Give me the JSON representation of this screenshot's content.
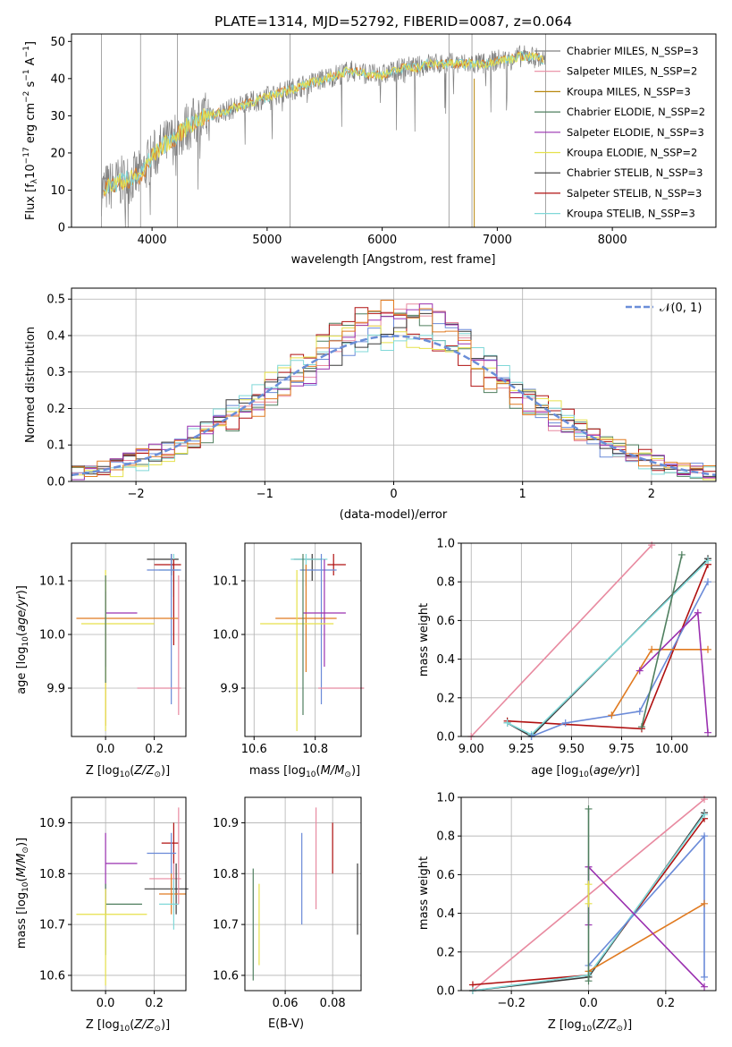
{
  "title": "PLATE=1314, MJD=52792, FIBERID=0087, z=0.064",
  "colors": {
    "chabrier_miles": "#808080",
    "salpeter_miles": "#e88aa0",
    "kroupa_miles": "#b8860b",
    "chabrier_elodie": "#4f7f5f",
    "salpeter_elodie": "#9a30b0",
    "kroupa_elodie": "#e6e14a",
    "chabrier_stelib": "#3a3a3a",
    "salpeter_stelib": "#b01010",
    "kroupa_stelib": "#80d8d8",
    "blue": "#6a8ad8",
    "orange": "#e07a20",
    "dashed": "#6a8ed8"
  },
  "chart_data": [
    {
      "type": "line",
      "title": "PLATE=1314, MJD=52792, FIBERID=0087, z=0.064",
      "xlabel": "wavelength [Angstrom, rest frame]",
      "ylabel": "Flux [f_λ10^-17 erg cm^-2 s^-1 A^-1]",
      "xlim": [
        3300,
        8900
      ],
      "ylim": [
        0,
        52
      ],
      "xticks": [
        "4000",
        "5000",
        "6000",
        "7000",
        "8000"
      ],
      "yticks": [
        "0",
        "10",
        "20",
        "30",
        "40",
        "50"
      ],
      "legend_position": "right",
      "legend": [
        {
          "label": "Chabrier MILES, N_SSP=3"
        },
        {
          "label": "Salpeter MILES, N_SSP=2"
        },
        {
          "label": "Kroupa MILES, N_SSP=3"
        },
        {
          "label": "Chabrier ELODIE, N_SSP=2"
        },
        {
          "label": "Salpeter ELODIE, N_SSP=3"
        },
        {
          "label": "Kroupa ELODIE, N_SSP=2"
        },
        {
          "label": "Chabrier STELIB, N_SSP=3"
        },
        {
          "label": "Salpeter STELIB, N_SSP=3"
        },
        {
          "label": "Kroupa STELIB, N_SSP=3"
        }
      ],
      "x": [
        3560,
        3700,
        3800,
        3900,
        4000,
        4100,
        4200,
        4300,
        4400,
        4500,
        4600,
        4700,
        4800,
        4900,
        5000,
        5100,
        5200,
        5300,
        5400,
        5500,
        5600,
        5700,
        5800,
        5900,
        6000,
        6100,
        6200,
        6300,
        6400,
        6500,
        6600,
        6700,
        6800,
        6900,
        7000,
        7100,
        7200,
        7300,
        7400
      ],
      "y": [
        10,
        12,
        13,
        14,
        19,
        22,
        24,
        27,
        29,
        30,
        31,
        32,
        33,
        34,
        35,
        36,
        37,
        38,
        39,
        40,
        41,
        42,
        42,
        41,
        41,
        42,
        43,
        43,
        44,
        44,
        44,
        44,
        44,
        44,
        45,
        45,
        46,
        46,
        45
      ]
    },
    {
      "type": "line",
      "xlabel": "(data-model)/error",
      "ylabel": "Normed distribution",
      "xlim": [
        -2.5,
        2.5
      ],
      "ylim": [
        0,
        0.53
      ],
      "xticks": [
        "−2",
        "−1",
        "0",
        "1",
        "2"
      ],
      "yticks": [
        "0.0",
        "0.1",
        "0.2",
        "0.3",
        "0.4",
        "0.5"
      ],
      "legend": [
        {
          "label": "𝒩(0, 1)"
        }
      ],
      "legend_position": "top-right",
      "series_note_gaussian_sigma": 1
    },
    {
      "type": "scatter",
      "xlabel": "Z [log10(Z/Z⊙)]",
      "ylabel": "age  [log10(age/yr)]",
      "xticks": [
        "0.0",
        "0.2"
      ],
      "yticks": [
        "9.9",
        "10.0",
        "10.1"
      ],
      "xlim": [
        -0.14,
        0.33
      ],
      "ylim": [
        9.81,
        10.17
      ]
    },
    {
      "type": "scatter",
      "xlabel": "mass [log10(M/M⊙)]",
      "xticks": [
        "10.6",
        "10.8"
      ],
      "yticks": [
        "9.9",
        "10.0",
        "10.1"
      ],
      "xlim": [
        10.57,
        10.95
      ],
      "ylim": [
        9.81,
        10.17
      ]
    },
    {
      "type": "line",
      "xlabel": "age  [log10(age/yr)]",
      "ylabel": "mass weight",
      "xticks": [
        "9.00",
        "9.25",
        "9.50",
        "9.75",
        "10.00"
      ],
      "yticks": [
        "0.0",
        "0.2",
        "0.4",
        "0.6",
        "0.8",
        "1.0"
      ],
      "xlim": [
        8.95,
        10.22
      ],
      "ylim": [
        0,
        1
      ]
    },
    {
      "type": "scatter",
      "xlabel": "Z [log10(Z/Z⊙)]",
      "ylabel": "mass [log10(M/M⊙)]",
      "xticks": [
        "0.0",
        "0.2"
      ],
      "yticks": [
        "10.6",
        "10.7",
        "10.8",
        "10.9"
      ],
      "xlim": [
        -0.14,
        0.33
      ],
      "ylim": [
        10.57,
        10.95
      ]
    },
    {
      "type": "scatter",
      "xlabel": "E(B-V)",
      "xticks": [
        "0.06",
        "0.08"
      ],
      "yticks": [
        "10.6",
        "10.7",
        "10.8",
        "10.9"
      ],
      "xlim": [
        0.043,
        0.092
      ],
      "ylim": [
        10.57,
        10.95
      ]
    },
    {
      "type": "line",
      "xlabel": "Z [log10(Z/Z⊙)]",
      "ylabel": "mass weight",
      "xticks": [
        "−0.2",
        "0.0",
        "0.2"
      ],
      "yticks": [
        "0.0",
        "0.2",
        "0.4",
        "0.6",
        "0.8",
        "1.0"
      ],
      "xlim": [
        -0.33,
        0.33
      ],
      "ylim": [
        0,
        1
      ]
    }
  ]
}
